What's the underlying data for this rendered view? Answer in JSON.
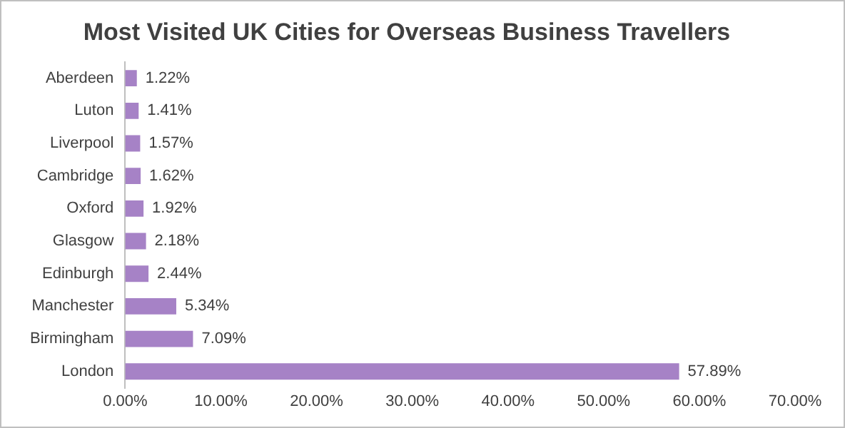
{
  "chart_data": {
    "type": "bar",
    "orientation": "horizontal",
    "title": "Most Visited UK Cities for Overseas Business Travellers",
    "categories": [
      "Aberdeen",
      "Luton",
      "Liverpool",
      "Cambridge",
      "Oxford",
      "Glasgow",
      "Edinburgh",
      "Manchester",
      "Birmingham",
      "London"
    ],
    "series": [
      {
        "color": "#a682c6",
        "values": [
          1.22,
          1.41,
          1.57,
          1.62,
          1.92,
          2.18,
          2.44,
          5.34,
          7.09,
          57.89
        ],
        "value_labels": [
          "1.22%",
          "1.41%",
          "1.57%",
          "1.62%",
          "1.92%",
          "2.18%",
          "2.44%",
          "5.34%",
          "7.09%",
          "57.89%"
        ]
      }
    ],
    "xlim": [
      0,
      70
    ],
    "xticks": [
      {
        "value": 0,
        "label": "0.00%"
      },
      {
        "value": 10,
        "label": "10.00%"
      },
      {
        "value": 20,
        "label": "20.00%"
      },
      {
        "value": 30,
        "label": "30.00%"
      },
      {
        "value": 40,
        "label": "40.00%"
      },
      {
        "value": 50,
        "label": "50.00%"
      },
      {
        "value": 60,
        "label": "60.00%"
      },
      {
        "value": 70,
        "label": "70.00%"
      }
    ],
    "grid": false,
    "legend": false
  }
}
